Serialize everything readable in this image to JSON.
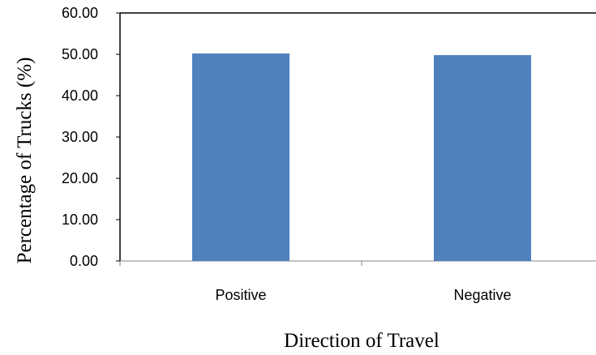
{
  "chart_data": {
    "type": "bar",
    "categories": [
      "Positive",
      "Negative"
    ],
    "series": [
      {
        "values": [
          50.2,
          49.8
        ],
        "color": "#4F81BD"
      }
    ],
    "xlabel": "Direction of Travel",
    "ylabel": "Percentage of Trucks (%)",
    "ylim": [
      0,
      60
    ],
    "yticks": [
      0,
      10,
      20,
      30,
      40,
      50,
      60
    ],
    "ytick_labels": [
      "0.00",
      "10.00",
      "20.00",
      "30.00",
      "40.00",
      "50.00",
      "60.00"
    ],
    "grid": false,
    "legend": "none"
  }
}
